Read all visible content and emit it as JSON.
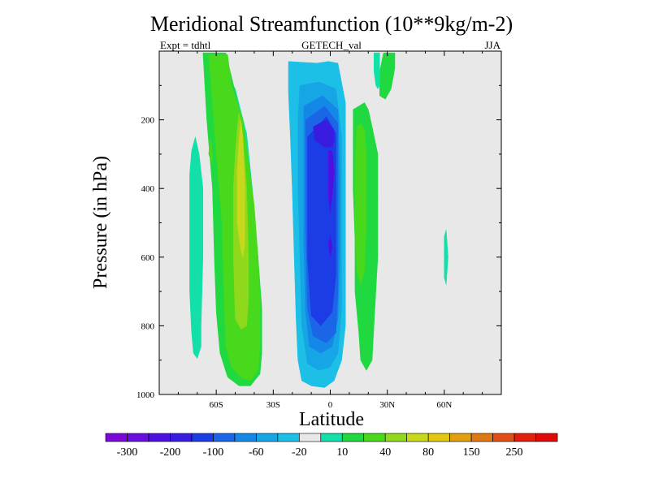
{
  "chart_data": {
    "type": "heatmap",
    "title": "Meridional Streamfunction (10**9kg/m-2)",
    "subtitle_left": "Expt = tdhtl",
    "subtitle_center": "GETECH_val",
    "subtitle_right": "JJA",
    "xlabel": "Latitude",
    "ylabel": "Pressure (in hPa)",
    "xlim": [
      -90,
      90
    ],
    "ylim": [
      0,
      1000
    ],
    "y_inverted": true,
    "x_ticks": [
      {
        "value": -60,
        "label": "60S"
      },
      {
        "value": -30,
        "label": "30S"
      },
      {
        "value": 0,
        "label": "0"
      },
      {
        "value": 30,
        "label": "30N"
      },
      {
        "value": 60,
        "label": "60N"
      }
    ],
    "y_ticks": [
      {
        "value": 200,
        "label": "200"
      },
      {
        "value": 400,
        "label": "400"
      },
      {
        "value": 600,
        "label": "600"
      },
      {
        "value": 800,
        "label": "800"
      },
      {
        "value": 1000,
        "label": "1000"
      }
    ],
    "background_color": "#e8e8e8",
    "levels": [
      -300,
      -250,
      -200,
      -150,
      -100,
      -80,
      -60,
      -40,
      -20,
      -10,
      10,
      20,
      40,
      60,
      80,
      100,
      150,
      200,
      250,
      300
    ],
    "colorbar_labels": [
      "-300",
      "-200",
      "-100",
      "-60",
      "-20",
      "10",
      "40",
      "80",
      "150",
      "250"
    ],
    "colorbar_colors": [
      "#7b0ad8",
      "#6a0ee0",
      "#4e10e0",
      "#3a1ce0",
      "#1c3ce6",
      "#1a66e6",
      "#1488e6",
      "#16a6e6",
      "#1cc0e6",
      "#e8e8e8",
      "#12e0a8",
      "#20d840",
      "#48d81c",
      "#90d81c",
      "#c8d81c",
      "#e0c810",
      "#e0a010",
      "#e07814",
      "#e05014",
      "#e0200c",
      "#e00808"
    ],
    "regions": [
      {
        "name": "nh-mid-cyan-top",
        "level": -20,
        "polygon": [
          [
            -28,
            5
          ],
          [
            -6,
            5
          ],
          [
            -3,
            8
          ],
          [
            -1,
            5
          ],
          [
            2,
            5
          ],
          [
            6,
            8
          ],
          [
            6,
            15
          ],
          [
            10,
            30
          ],
          [
            12,
            80
          ],
          [
            12,
            160
          ],
          [
            10,
            220
          ],
          [
            10,
            400
          ],
          [
            10,
            600
          ],
          [
            10,
            800
          ],
          [
            8,
            920
          ],
          [
            3,
            990
          ],
          [
            -4,
            995
          ],
          [
            -11,
            995
          ],
          [
            -16,
            990
          ],
          [
            -19,
            950
          ],
          [
            -20,
            870
          ],
          [
            -21,
            700
          ],
          [
            -22,
            500
          ],
          [
            -24,
            300
          ],
          [
            -26,
            150
          ],
          [
            -28,
            80
          ]
        ]
      },
      {
        "name": "south-cyan-band",
        "level": -10,
        "polygon": [
          [
            -57,
            40
          ],
          [
            -50,
            110
          ],
          [
            -44,
            240
          ],
          [
            -41,
            400
          ],
          [
            -38,
            600
          ],
          [
            -37,
            760
          ],
          [
            -38,
            860
          ],
          [
            -40,
            940
          ],
          [
            -44,
            975
          ],
          [
            -48,
            970
          ],
          [
            -52,
            940
          ],
          [
            -54,
            880
          ],
          [
            -55,
            760
          ],
          [
            -55,
            600
          ],
          [
            -56,
            400
          ],
          [
            -57,
            200
          ]
        ]
      },
      {
        "name": "south-small-cyan",
        "level": -10,
        "polygon": [
          [
            -73,
            290
          ],
          [
            -71,
            250
          ],
          [
            -69,
            300
          ],
          [
            -67,
            400
          ],
          [
            -67,
            600
          ],
          [
            -68,
            800
          ],
          [
            -68,
            860
          ],
          [
            -70,
            895
          ],
          [
            -72,
            880
          ],
          [
            -73,
            820
          ],
          [
            -74,
            700
          ],
          [
            -74,
            500
          ],
          [
            -74,
            360
          ]
        ]
      },
      {
        "name": "nh-cyan-ne",
        "level": -10,
        "polygon": [
          [
            23,
            5
          ],
          [
            26,
            5
          ],
          [
            26,
            100
          ],
          [
            25,
            110
          ],
          [
            24,
            100
          ],
          [
            23,
            60
          ]
        ]
      },
      {
        "name": "nh-cyan-strip",
        "level": -10,
        "polygon": [
          [
            60,
            540
          ],
          [
            61,
            520
          ],
          [
            62,
            600
          ],
          [
            61,
            680
          ],
          [
            60,
            660
          ]
        ]
      },
      {
        "name": "nh-blue1",
        "level": -40,
        "polygon": [
          [
            -22,
            30
          ],
          [
            -7,
            35
          ],
          [
            -1,
            30
          ],
          [
            4,
            35
          ],
          [
            8,
            150
          ],
          [
            8,
            300
          ],
          [
            8,
            600
          ],
          [
            8,
            800
          ],
          [
            6,
            900
          ],
          [
            2,
            960
          ],
          [
            -3,
            980
          ],
          [
            -10,
            975
          ],
          [
            -15,
            960
          ],
          [
            -17,
            900
          ],
          [
            -18,
            780
          ],
          [
            -19,
            600
          ],
          [
            -20,
            400
          ],
          [
            -21,
            250
          ],
          [
            -22,
            120
          ]
        ]
      },
      {
        "name": "nh-blue2",
        "level": -60,
        "polygon": [
          [
            -16,
            100
          ],
          [
            -6,
            90
          ],
          [
            3,
            110
          ],
          [
            6,
            250
          ],
          [
            6,
            500
          ],
          [
            6,
            750
          ],
          [
            4,
            880
          ],
          [
            0,
            920
          ],
          [
            -6,
            930
          ],
          [
            -12,
            910
          ],
          [
            -15,
            800
          ],
          [
            -16,
            600
          ],
          [
            -17,
            400
          ],
          [
            -17,
            200
          ]
        ]
      },
      {
        "name": "nh-blue3",
        "level": -80,
        "polygon": [
          [
            -14,
            160
          ],
          [
            -4,
            130
          ],
          [
            4,
            170
          ],
          [
            5,
            350
          ],
          [
            5,
            600
          ],
          [
            4,
            780
          ],
          [
            1,
            860
          ],
          [
            -5,
            880
          ],
          [
            -11,
            860
          ],
          [
            -13,
            760
          ],
          [
            -14,
            550
          ],
          [
            -14,
            350
          ],
          [
            -14,
            220
          ]
        ]
      },
      {
        "name": "nh-blue4",
        "level": -100,
        "polygon": [
          [
            -13,
            200
          ],
          [
            -3,
            160
          ],
          [
            4,
            210
          ],
          [
            4,
            500
          ],
          [
            4,
            700
          ],
          [
            3,
            820
          ],
          [
            -2,
            850
          ],
          [
            -9,
            830
          ],
          [
            -12,
            750
          ],
          [
            -13,
            500
          ],
          [
            -13,
            300
          ]
        ]
      },
      {
        "name": "nh-blue5",
        "level": -150,
        "polygon": [
          [
            -12,
            250
          ],
          [
            -2,
            190
          ],
          [
            3,
            240
          ],
          [
            3,
            400
          ],
          [
            3,
            650
          ],
          [
            1,
            760
          ],
          [
            -5,
            800
          ],
          [
            -10,
            770
          ],
          [
            -12,
            600
          ],
          [
            -12,
            420
          ]
        ]
      },
      {
        "name": "nh-blue6",
        "level": -200,
        "polygon": [
          [
            -9,
            220
          ],
          [
            -2,
            200
          ],
          [
            2,
            230
          ],
          [
            2,
            260
          ],
          [
            1,
            280
          ],
          [
            -3,
            280
          ],
          [
            -8,
            260
          ]
        ]
      },
      {
        "name": "nh-purple-core",
        "level": -250,
        "polygon": [
          [
            -1,
            290
          ],
          [
            1,
            290
          ],
          [
            2,
            350
          ],
          [
            1,
            420
          ],
          [
            0,
            470
          ],
          [
            -1,
            420
          ],
          [
            -1,
            340
          ]
        ]
      },
      {
        "name": "nh-purple-dot",
        "level": -250,
        "polygon": [
          [
            -1,
            560
          ],
          [
            0,
            540
          ],
          [
            1,
            570
          ],
          [
            0,
            600
          ]
        ]
      },
      {
        "name": "sh-green-band",
        "level": 20,
        "polygon": [
          [
            -64,
            10
          ],
          [
            -54,
            10
          ],
          [
            -52,
            100
          ],
          [
            -46,
            200
          ],
          [
            -43,
            320
          ],
          [
            -40,
            450
          ],
          [
            -38,
            600
          ],
          [
            -37,
            720
          ],
          [
            -37,
            850
          ],
          [
            -38,
            930
          ],
          [
            -42,
            960
          ],
          [
            -47,
            950
          ],
          [
            -52,
            920
          ],
          [
            -55,
            860
          ],
          [
            -56,
            700
          ],
          [
            -57,
            500
          ],
          [
            -60,
            300
          ],
          [
            -62,
            150
          ]
        ]
      },
      {
        "name": "sh-light-green",
        "level": 40,
        "polygon": [
          [
            -48,
            180
          ],
          [
            -46,
            250
          ],
          [
            -44,
            400
          ],
          [
            -43,
            600
          ],
          [
            -43,
            720
          ],
          [
            -44,
            800
          ],
          [
            -47,
            810
          ],
          [
            -50,
            780
          ],
          [
            -51,
            600
          ],
          [
            -51,
            400
          ],
          [
            -50,
            300
          ],
          [
            -49,
            230
          ]
        ]
      },
      {
        "name": "sh-yellow-green",
        "level": 60,
        "polygon": [
          [
            -47,
            200
          ],
          [
            -46,
            250
          ],
          [
            -45,
            400
          ],
          [
            -45,
            560
          ],
          [
            -46,
            600
          ],
          [
            -47,
            580
          ],
          [
            -49,
            500
          ],
          [
            -49,
            350
          ],
          [
            -48,
            260
          ]
        ]
      },
      {
        "name": "sh-green-side",
        "level": 20,
        "polygon": [
          [
            -63,
            250
          ],
          [
            -62,
            300
          ],
          [
            -62,
            330
          ],
          [
            -64,
            300
          ]
        ]
      },
      {
        "name": "sh-teal-band",
        "level": 10,
        "polygon": [
          [
            -67,
            5
          ],
          [
            -55,
            5
          ],
          [
            -50,
            120
          ],
          [
            -45,
            240
          ],
          [
            -42,
            400
          ],
          [
            -38,
            600
          ],
          [
            -36,
            750
          ],
          [
            -36,
            880
          ],
          [
            -37,
            940
          ],
          [
            -42,
            975
          ],
          [
            -48,
            975
          ],
          [
            -54,
            950
          ],
          [
            -58,
            880
          ],
          [
            -60,
            760
          ],
          [
            -61,
            600
          ],
          [
            -62,
            400
          ],
          [
            -65,
            200
          ],
          [
            -66,
            100
          ]
        ]
      },
      {
        "name": "nh-teal",
        "level": 10,
        "polygon": [
          [
            12,
            170
          ],
          [
            15,
            160
          ],
          [
            18,
            150
          ],
          [
            20,
            170
          ],
          [
            22,
            220
          ],
          [
            25,
            300
          ],
          [
            25,
            420
          ],
          [
            25,
            600
          ],
          [
            24,
            700
          ],
          [
            23,
            800
          ],
          [
            22,
            900
          ],
          [
            19,
            930
          ],
          [
            16,
            900
          ],
          [
            15,
            820
          ],
          [
            13,
            700
          ],
          [
            13,
            550
          ],
          [
            12,
            400
          ],
          [
            12,
            260
          ]
        ]
      },
      {
        "name": "nh-teal-top",
        "level": 10,
        "polygon": [
          [
            28,
            5
          ],
          [
            34,
            5
          ],
          [
            34,
            50
          ],
          [
            32,
            110
          ],
          [
            29,
            140
          ],
          [
            26,
            130
          ],
          [
            26,
            60
          ]
        ]
      },
      {
        "name": "nh-green",
        "level": 20,
        "polygon": [
          [
            14,
            220
          ],
          [
            16,
            210
          ],
          [
            18,
            230
          ],
          [
            19,
            300
          ],
          [
            19,
            500
          ],
          [
            18,
            640
          ],
          [
            16,
            680
          ],
          [
            14,
            640
          ],
          [
            13,
            500
          ],
          [
            13,
            330
          ]
        ]
      },
      {
        "name": "nh-teal-right",
        "level": 10,
        "polygon": [
          [
            20,
            350
          ],
          [
            22,
            300
          ],
          [
            24,
            400
          ],
          [
            24,
            600
          ],
          [
            23,
            700
          ],
          [
            21,
            720
          ],
          [
            20,
            650
          ],
          [
            20,
            500
          ]
        ]
      }
    ]
  }
}
